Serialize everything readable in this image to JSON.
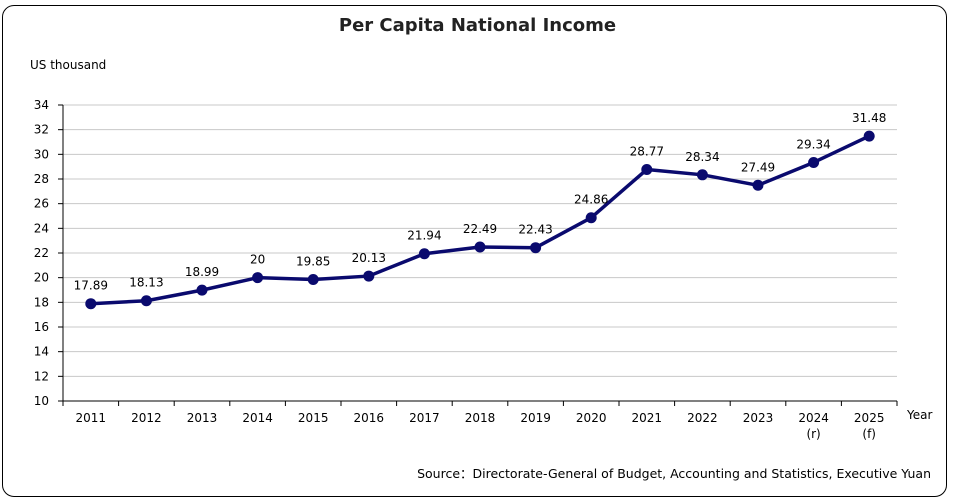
{
  "chart_data": {
    "type": "line",
    "title": "Per Capita National Income",
    "ylabel": "US thousand",
    "xlabel": "Year",
    "ylim": [
      10,
      34
    ],
    "yticks": [
      "10",
      "12",
      "14",
      "16",
      "18",
      "20",
      "22",
      "24",
      "26",
      "28",
      "30",
      "32",
      "34"
    ],
    "categories": [
      "2011",
      "2012",
      "2013",
      "2014",
      "2015",
      "2016",
      "2017",
      "2018",
      "2019",
      "2020",
      "2021",
      "2022",
      "2023",
      "2024",
      "2025"
    ],
    "category_notes": [
      "",
      "",
      "",
      "",
      "",
      "",
      "",
      "",
      "",
      "",
      "",
      "",
      "",
      "(r)",
      "(f)"
    ],
    "series": [
      {
        "values": [
          17.89,
          18.13,
          18.99,
          20,
          19.85,
          20.13,
          21.94,
          22.49,
          22.43,
          24.86,
          28.77,
          28.34,
          27.49,
          29.34,
          31.48
        ],
        "labels": [
          "17.89",
          "18.13",
          "18.99",
          "20",
          "19.85",
          "20.13",
          "21.94",
          "22.49",
          "22.43",
          "24.86",
          "28.77",
          "28.34",
          "27.49",
          "29.34",
          "31.48"
        ],
        "color": "#0a0a6e"
      }
    ],
    "grid": true,
    "source": "Source：Directorate-General of Budget, Accounting and Statistics, Executive Yuan"
  }
}
